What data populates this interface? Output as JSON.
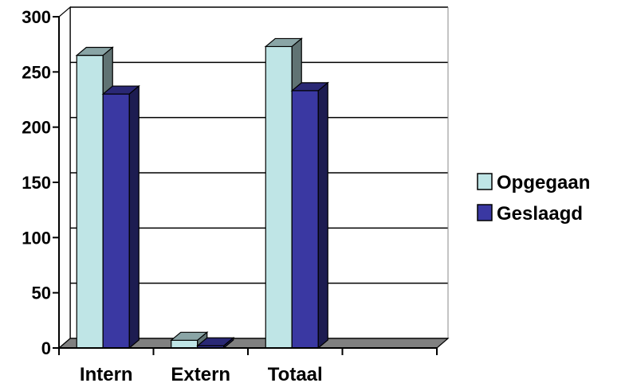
{
  "chart_data": {
    "type": "bar",
    "categories": [
      "Intern",
      "Extern",
      "Totaal",
      ""
    ],
    "series": [
      {
        "name": "Opgegaan",
        "values": [
          265,
          7,
          273,
          null
        ],
        "color": "#bfe5e6"
      },
      {
        "name": "Geslaagd",
        "values": [
          230,
          2,
          233,
          null
        ],
        "color": "#3a38a2"
      }
    ],
    "ylim": [
      0,
      300
    ],
    "yticks": [
      0,
      50,
      100,
      150,
      200,
      250,
      300
    ],
    "grid": true,
    "legend": "right",
    "style": "3d-clustered-column"
  }
}
